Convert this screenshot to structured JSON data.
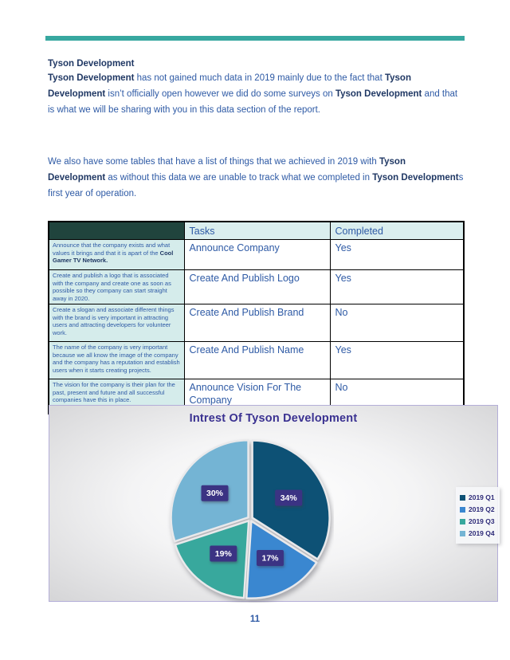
{
  "colors": {
    "accent_teal": "#38a8a0",
    "body_text": "#2e5aa5",
    "bold_text": "#203864",
    "table_header_dark_cell": "#20443d",
    "table_header_bg": "#daeeee",
    "table_desc_bg": "#d5eceb",
    "chart_border": "#b4aed8"
  },
  "heading": "Tyson Development",
  "paragraphs": [
    {
      "segments": [
        {
          "text": "Tyson Development",
          "bold": true
        },
        {
          "text": " has not gained much data in 2019 mainly due to the fact that ",
          "bold": false
        },
        {
          "text": "Tyson Development",
          "bold": true
        },
        {
          "text": " isn’t officially open however we did do some surveys on ",
          "bold": false
        },
        {
          "text": "Tyson Development",
          "bold": true
        },
        {
          "text": " and that is what we will be sharing with you in this data section of the report.",
          "bold": false
        }
      ]
    },
    {
      "segments": [
        {
          "text": "We also have some tables that have a list of things that we achieved in 2019 with ",
          "bold": false
        },
        {
          "text": "Tyson Development",
          "bold": true
        },
        {
          "text": " as without this data we are unable to track what we completed in ",
          "bold": false
        },
        {
          "text": "Tyson Development",
          "bold": true
        },
        {
          "text": "s first year of operation.",
          "bold": false
        }
      ]
    }
  ],
  "table": {
    "headers": [
      "",
      "Tasks",
      "Completed"
    ],
    "rows": [
      {
        "description": [
          {
            "text": "Announce that the company exists and what values it brings and that it is apart of the ",
            "bold": false
          },
          {
            "text": "Cool Gamer TV Network.",
            "bold": true
          }
        ],
        "task": "Announce Company",
        "completed": "Yes"
      },
      {
        "description": [
          {
            "text": "Create and publish a logo that is associated with the company and create one as soon as possible so they company can start straight away in 2020.",
            "bold": false
          }
        ],
        "task": "Create And Publish Logo",
        "completed": "Yes"
      },
      {
        "description": [
          {
            "text": "Create a slogan and associate different things with the brand is very important in attracting users and attracting developers for volunteer work.",
            "bold": false
          }
        ],
        "task": "Create And Publish Brand",
        "completed": "No"
      },
      {
        "description": [
          {
            "text": "The name of the company is very important because we all know the image of the company and the company has a reputation and establish users when it starts creating projects.",
            "bold": false
          }
        ],
        "task": "Create And Publish Name",
        "completed": "Yes"
      },
      {
        "description": [
          {
            "text": "The vision for the company is their plan for the past, present and future and all successful companies have this in place.",
            "bold": false
          }
        ],
        "task": "Announce Vision For The Company",
        "completed": "No"
      }
    ]
  },
  "chart_data": {
    "type": "pie",
    "title": "Intrest Of Tyson Development",
    "categories": [
      "2019 Q1",
      "2019 Q2",
      "2019 Q3",
      "2019 Q4"
    ],
    "values": [
      34,
      17,
      19,
      30
    ],
    "labels": [
      "34%",
      "17%",
      "19%",
      "30%"
    ],
    "colors": [
      "#0d5175",
      "#3a87d0",
      "#38a89d",
      "#74b4d4"
    ],
    "legend_position": "right",
    "start_angle_deg": 0,
    "direction": "clockwise",
    "title_color": "#3a3191",
    "label_box_color": "#3b3383"
  },
  "page": {
    "number": "11"
  }
}
